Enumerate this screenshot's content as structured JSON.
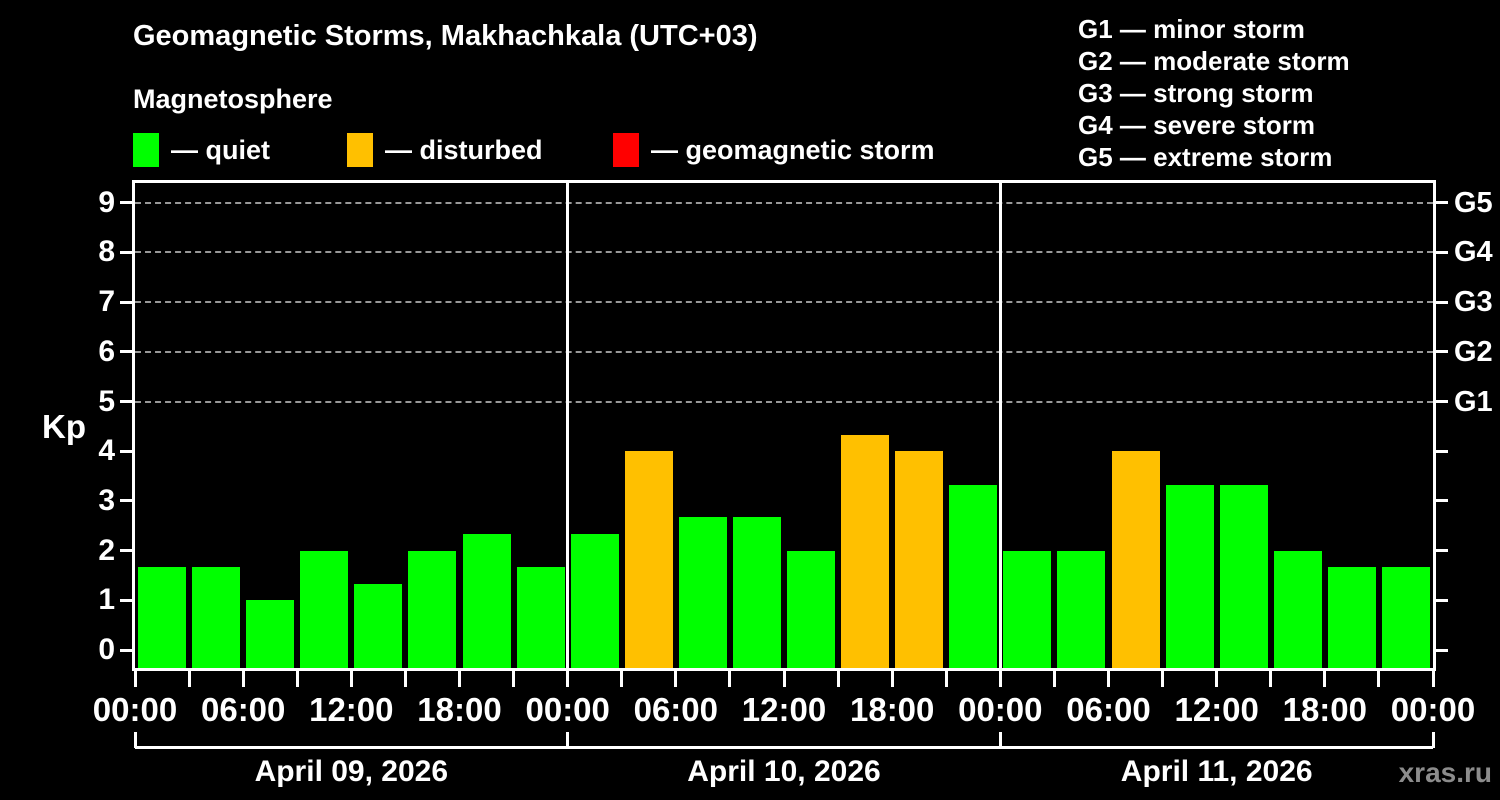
{
  "header": {
    "title": "Geomagnetic Storms, Makhachkala (UTC+03)",
    "subtitle": "Magnetosphere"
  },
  "separator": "—",
  "legend": [
    {
      "key": "quiet",
      "label": "quiet",
      "color": "#00ff00"
    },
    {
      "key": "disturbed",
      "label": "disturbed",
      "color": "#ffc000"
    },
    {
      "key": "geomagnetic-storm",
      "label": "geomagnetic storm",
      "color": "#ff0000"
    }
  ],
  "g_legend": [
    {
      "code": "G1",
      "label": "minor storm"
    },
    {
      "code": "G2",
      "label": "moderate storm"
    },
    {
      "code": "G3",
      "label": "strong storm"
    },
    {
      "code": "G4",
      "label": "severe storm"
    },
    {
      "code": "G5",
      "label": "extreme storm"
    }
  ],
  "watermark": "xras.ru",
  "chart_data": {
    "type": "bar",
    "title": "Geomagnetic Storms, Makhachkala (UTC+03)",
    "subtitle": "Magnetosphere",
    "ylabel": "Kp",
    "ylim": [
      0,
      9.4
    ],
    "yticks": [
      0,
      1,
      2,
      3,
      4,
      5,
      6,
      7,
      8,
      9
    ],
    "grid": "dashed horizontal at Kp 5-9",
    "grid_levels_kp": [
      5,
      6,
      7,
      8,
      9
    ],
    "right_axis_labels": [
      {
        "kp": 5,
        "label": "G1"
      },
      {
        "kp": 6,
        "label": "G2"
      },
      {
        "kp": 7,
        "label": "G3"
      },
      {
        "kp": 8,
        "label": "G4"
      },
      {
        "kp": 9,
        "label": "G5"
      }
    ],
    "hours_per_bar": 3,
    "x_tick_interval_hours": 3,
    "x_label_interval_hours": 6,
    "x_labels": [
      "00:00",
      "06:00",
      "12:00",
      "18:00",
      "00:00",
      "06:00",
      "12:00",
      "18:00",
      "00:00",
      "06:00",
      "12:00",
      "18:00",
      "00:00"
    ],
    "status_colors": {
      "quiet": "#00ff00",
      "disturbed": "#ffc000",
      "geomagnetic-storm": "#ff0000"
    },
    "days": [
      {
        "date": "April 09, 2026",
        "kp_values": [
          1.67,
          1.67,
          1.0,
          2.0,
          1.33,
          2.0,
          2.33,
          1.67
        ],
        "status": [
          "quiet",
          "quiet",
          "quiet",
          "quiet",
          "quiet",
          "quiet",
          "quiet",
          "quiet"
        ]
      },
      {
        "date": "April 10, 2026",
        "kp_values": [
          2.33,
          4.0,
          2.67,
          2.67,
          2.0,
          4.33,
          4.0,
          3.33
        ],
        "status": [
          "quiet",
          "disturbed",
          "quiet",
          "quiet",
          "quiet",
          "disturbed",
          "disturbed",
          "quiet"
        ]
      },
      {
        "date": "April 11, 2026",
        "kp_values": [
          2.0,
          2.0,
          4.0,
          3.33,
          3.33,
          2.0,
          1.67,
          1.67
        ],
        "status": [
          "quiet",
          "quiet",
          "disturbed",
          "quiet",
          "quiet",
          "quiet",
          "quiet",
          "quiet"
        ]
      }
    ]
  }
}
